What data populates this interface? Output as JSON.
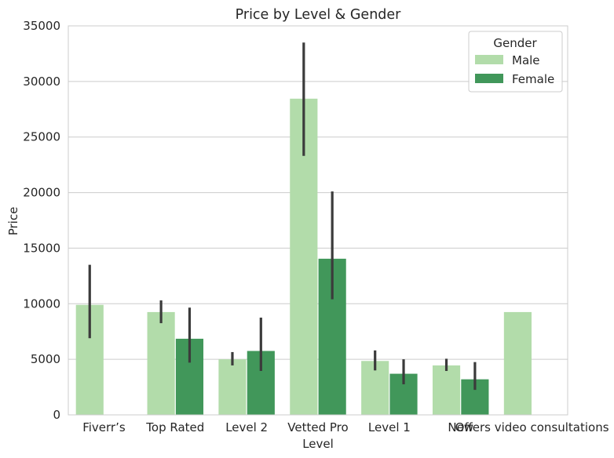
{
  "chart_data": {
    "type": "bar",
    "title": "Price by Level & Gender",
    "xlabel": "Level",
    "ylabel": "Price",
    "ylim": [
      0,
      35000
    ],
    "yticks": [
      0,
      5000,
      10000,
      15000,
      20000,
      25000,
      30000,
      35000
    ],
    "grid": true,
    "legend_position": "top-right",
    "legend_title": "Gender",
    "categories": [
      "Fiverr’s",
      "Top Rated",
      "Level 2",
      "Vetted Pro",
      "Level 1",
      "New",
      "Offers video consultations"
    ],
    "series": [
      {
        "name": "Male",
        "color": "#b2dcaa",
        "values": [
          9900,
          9250,
          5000,
          28450,
          4850,
          4450,
          9250
        ],
        "error_low": [
          6900,
          8250,
          4450,
          23300,
          4000,
          3950,
          null
        ],
        "error_high": [
          13500,
          10300,
          5650,
          33500,
          5800,
          5050,
          null
        ]
      },
      {
        "name": "Female",
        "color": "#41975a",
        "values": [
          null,
          6850,
          5750,
          14050,
          3700,
          3200,
          null
        ],
        "error_low": [
          null,
          4700,
          3950,
          10400,
          2750,
          2250,
          null
        ],
        "error_high": [
          null,
          9650,
          8750,
          20100,
          5000,
          4750,
          null
        ]
      }
    ],
    "error_bar_color": "#3b3b3b"
  }
}
